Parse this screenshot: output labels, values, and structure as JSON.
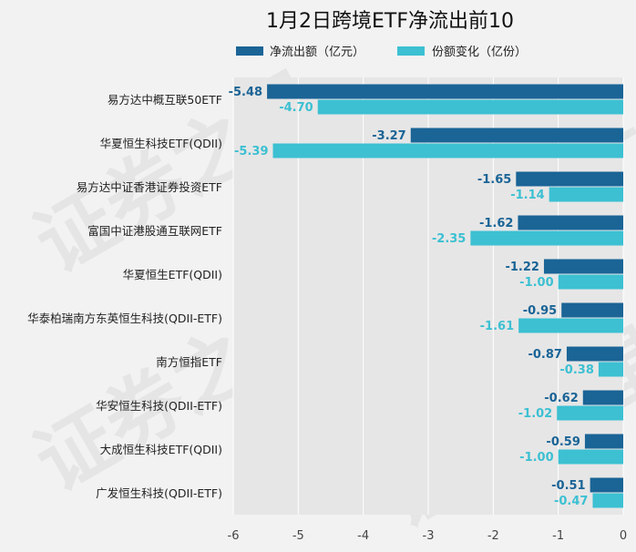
{
  "chart_data": {
    "type": "bar",
    "orientation": "horizontal",
    "title": "1月2日跨境ETF净流出前10",
    "categories": [
      "易方达中概互联50ETF",
      "华夏恒生科技ETF(QDII)",
      "易方达中证香港证券投资ETF",
      "富国中证港股通互联网ETF",
      "华夏恒生ETF(QDII)",
      "华泰柏瑞南方东英恒生科技(QDII-ETF)",
      "南方恒指ETF",
      "华安恒生科技(QDII-ETF)",
      "大成恒生科技ETF(QDII)",
      "广发恒生科技(QDII-ETF)"
    ],
    "series": [
      {
        "name": "净流出额（亿元）",
        "color": "#1a6496",
        "values": [
          -5.48,
          -3.27,
          -1.65,
          -1.62,
          -1.22,
          -0.95,
          -0.87,
          -0.62,
          -0.59,
          -0.51
        ],
        "labels": [
          "-5.48",
          "-3.27",
          "-1.65",
          "-1.62",
          "-1.22",
          "-0.95",
          "-0.87",
          "-0.62",
          "-0.59",
          "-0.51"
        ]
      },
      {
        "name": "份额变化（亿份）",
        "color": "#3cc0d2",
        "values": [
          -4.7,
          -5.39,
          -1.14,
          -2.35,
          -1.0,
          -1.61,
          -0.38,
          -1.02,
          -1.0,
          -0.47
        ],
        "labels": [
          "-4.70",
          "-5.39",
          "-1.14",
          "-2.35",
          "-1.00",
          "-1.61",
          "-0.38",
          "-1.02",
          "-1.00",
          "-0.47"
        ]
      }
    ],
    "xlim": [
      -6,
      0
    ],
    "xticks": [
      -6,
      -5,
      -4,
      -3,
      -2,
      -1,
      0
    ],
    "xtick_labels": [
      "-6",
      "-5",
      "-4",
      "-3",
      "-2",
      "-1",
      "0"
    ],
    "legend_position": "top",
    "grid": true
  },
  "watermark": "证券之星"
}
